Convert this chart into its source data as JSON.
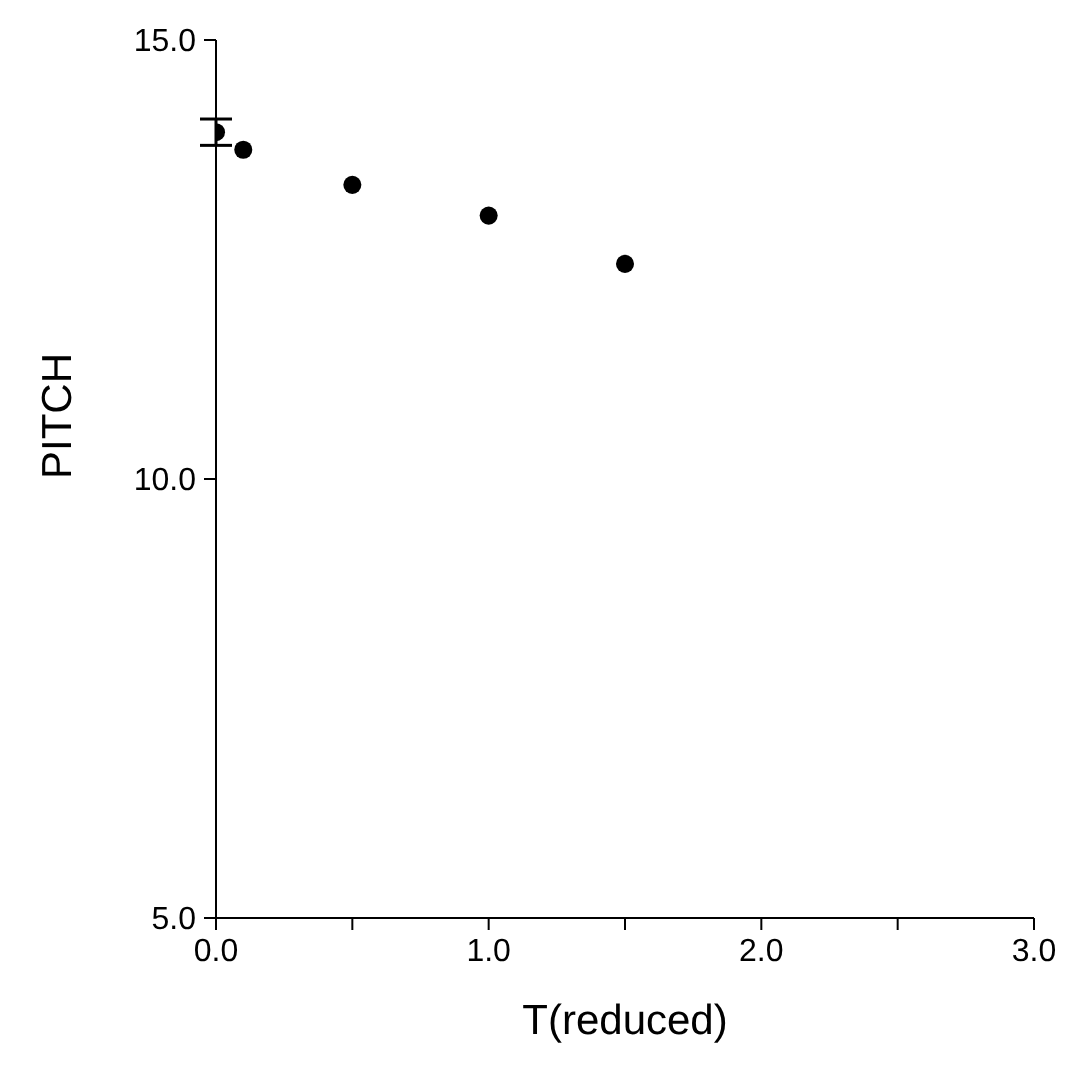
{
  "chart_data": {
    "type": "scatter",
    "xlabel": "T(reduced)",
    "ylabel": "PITCH",
    "x": [
      0,
      0.1,
      0.5,
      1.0,
      1.5
    ],
    "series": [
      {
        "color": "#000000",
        "values": [
          13.95,
          13.75,
          13.35,
          13.0,
          12.45
        ],
        "errors": [
          0.15,
          null,
          null,
          null,
          null
        ]
      }
    ],
    "xlim": [
      0,
      3
    ],
    "xticks": [
      {
        "value": 0,
        "label": "0.0"
      },
      {
        "value": 0.5,
        "label": null
      },
      {
        "value": 1,
        "label": "1.0"
      },
      {
        "value": 1.5,
        "label": null
      },
      {
        "value": 2,
        "label": "2.0"
      },
      {
        "value": 2.5,
        "label": null
      },
      {
        "value": 3,
        "label": "3.0"
      }
    ],
    "ylim": [
      5,
      15
    ],
    "yticks": [
      {
        "value": 5,
        "label": "5.0"
      },
      {
        "value": 10,
        "label": "10.0"
      },
      {
        "value": 15,
        "label": "15.0"
      }
    ],
    "marker": "circle",
    "grid": false,
    "legend": false
  }
}
